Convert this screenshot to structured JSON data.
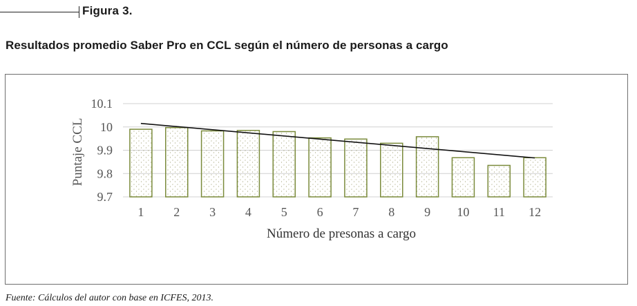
{
  "figure": {
    "label": "Figura 3.",
    "title": "Resultados promedio Saber Pro en CCL según el número de personas a cargo",
    "source": "Fuente: Cálculos del autor con base en ICFES, 2013."
  },
  "chart_data": {
    "type": "bar",
    "categories": [
      "1",
      "2",
      "3",
      "4",
      "5",
      "6",
      "7",
      "8",
      "9",
      "10",
      "11",
      "12"
    ],
    "values": [
      9.99,
      9.997,
      9.983,
      9.985,
      9.98,
      9.953,
      9.948,
      9.93,
      9.958,
      9.868,
      9.835,
      9.868
    ],
    "trendline": {
      "type": "linear",
      "start": 10.015,
      "end": 9.867
    },
    "xlabel": "Número  de presonas a cargo",
    "ylabel": "Puntaje CCL",
    "ylim": [
      9.7,
      10.1
    ],
    "yticks": [
      "9.7",
      "9.8",
      "9.9",
      "10",
      "10.1"
    ],
    "grid": true,
    "colors": {
      "bar_stroke": "#7a8a3a",
      "bar_fill": "#ffffff",
      "pattern": "#8a8a55",
      "trend": "#111111",
      "grid": "#d0d0d0"
    }
  }
}
